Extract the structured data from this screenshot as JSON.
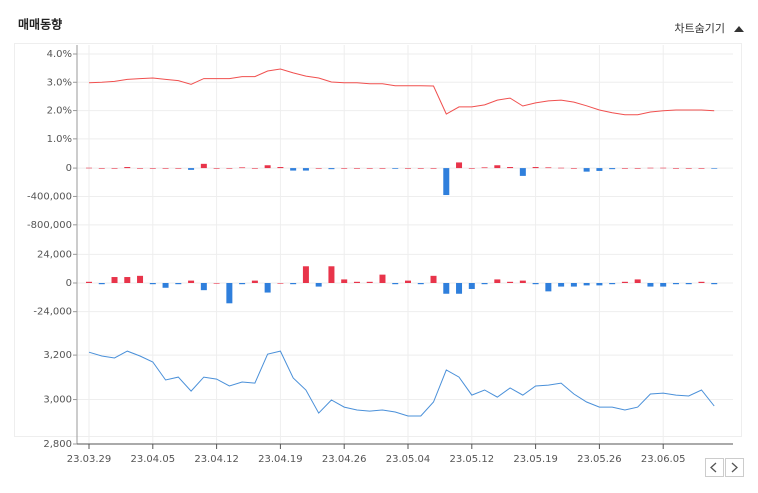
{
  "header": {
    "title": "매매동향",
    "toggle": "차트숨기기"
  },
  "chart_data": [
    {
      "type": "line",
      "color": "#f0504f",
      "values": [
        2.98,
        3.0,
        3.03,
        3.1,
        3.13,
        3.15,
        3.1,
        3.06,
        2.93,
        3.13,
        3.13,
        3.13,
        3.2,
        3.2,
        3.4,
        3.47,
        3.33,
        3.22,
        3.15,
        3.01,
        2.98,
        2.98,
        2.95,
        2.95,
        2.88,
        2.88,
        2.88,
        2.87,
        1.88,
        2.13,
        2.13,
        2.2,
        2.37,
        2.44,
        2.16,
        2.27,
        2.34,
        2.37,
        2.3,
        2.17,
        2.02,
        1.92,
        1.85,
        1.85,
        1.95,
        1.99,
        2.02,
        2.02,
        2.02,
        1.99
      ],
      "ylim": [
        0.5,
        4.3
      ],
      "yticks": [
        {
          "value": 4.0,
          "label": "4.0%"
        },
        {
          "value": 3.0,
          "label": "3.0%"
        },
        {
          "value": 2.0,
          "label": "2.0%"
        },
        {
          "value": 1.0,
          "label": "1.0%"
        }
      ],
      "grid": true
    },
    {
      "type": "bar",
      "pos_color": "#e8344a",
      "neg_color": "#2f7fdc",
      "values": [
        5000,
        0,
        0,
        15000,
        0,
        0,
        0,
        0,
        -25000,
        60000,
        0,
        0,
        10000,
        0,
        40000,
        15000,
        -35000,
        -35000,
        0,
        -15000,
        0,
        0,
        0,
        0,
        -10000,
        0,
        0,
        0,
        -380000,
        80000,
        0,
        10000,
        40000,
        15000,
        -110000,
        15000,
        10000,
        5000,
        0,
        -50000,
        -40000,
        -15000,
        0,
        0,
        5000,
        5000,
        0,
        0,
        0,
        -3000
      ],
      "ylim": [
        -1000000,
        100000
      ],
      "yticks": [
        0,
        {
          "value": -400000,
          "label": "-400,000"
        },
        {
          "value": -800000,
          "label": "-800,000"
        }
      ],
      "grid": true
    },
    {
      "type": "bar",
      "pos_color": "#e8344a",
      "neg_color": "#2f7fdc",
      "values": [
        1000,
        -1000,
        5000,
        5000,
        6000,
        -1000,
        -4000,
        -1000,
        2000,
        -6000,
        0,
        -17000,
        -1000,
        2000,
        -8000,
        0,
        -1000,
        14000,
        -3000,
        14000,
        3000,
        1000,
        1000,
        7000,
        -1000,
        2000,
        -1000,
        6000,
        -9000,
        -9000,
        -5000,
        -1000,
        3000,
        1000,
        2000,
        -1000,
        -7000,
        -3000,
        -3000,
        -2000,
        -2000,
        -1000,
        1000,
        3000,
        -3000,
        -3000,
        -1000,
        -1000,
        1000,
        -1000
      ],
      "ylim": [
        -36000,
        36000
      ],
      "yticks": [
        {
          "value": 24000,
          "label": "24,000"
        },
        0,
        {
          "value": -24000,
          "label": "-24,000"
        }
      ],
      "grid": true
    },
    {
      "type": "line",
      "color": "#4a90d9",
      "values": [
        3213,
        3196,
        3187,
        3218,
        3196,
        3169,
        3088,
        3101,
        3038,
        3101,
        3092,
        3061,
        3079,
        3074,
        3204,
        3218,
        3097,
        3043,
        2939,
        2998,
        2966,
        2953,
        2948,
        2953,
        2944,
        2926,
        2926,
        2989,
        3133,
        3101,
        3020,
        3043,
        3011,
        3052,
        3020,
        3061,
        3065,
        3074,
        3025,
        2989,
        2966,
        2966,
        2953,
        2966,
        3025,
        3029,
        3020,
        3016,
        3043,
        2971
      ],
      "ylim": [
        2800,
        3250
      ],
      "yticks": [
        {
          "value": 3200,
          "label": "3,200"
        },
        {
          "value": 3000,
          "label": "3,000"
        },
        {
          "value": 2800,
          "label": "2,800"
        }
      ],
      "grid": true,
      "categories": [
        "23.03.29",
        null,
        null,
        null,
        null,
        "23.04.05",
        null,
        null,
        null,
        null,
        "23.04.12",
        null,
        null,
        null,
        null,
        "23.04.19",
        null,
        null,
        null,
        null,
        "23.04.26",
        null,
        null,
        null,
        null,
        "23.05.04",
        null,
        null,
        null,
        null,
        "23.05.12",
        null,
        null,
        null,
        null,
        "23.05.19",
        null,
        null,
        null,
        null,
        "23.05.26",
        null,
        null,
        null,
        null,
        "23.06.05",
        null,
        null,
        null,
        null
      ]
    }
  ]
}
